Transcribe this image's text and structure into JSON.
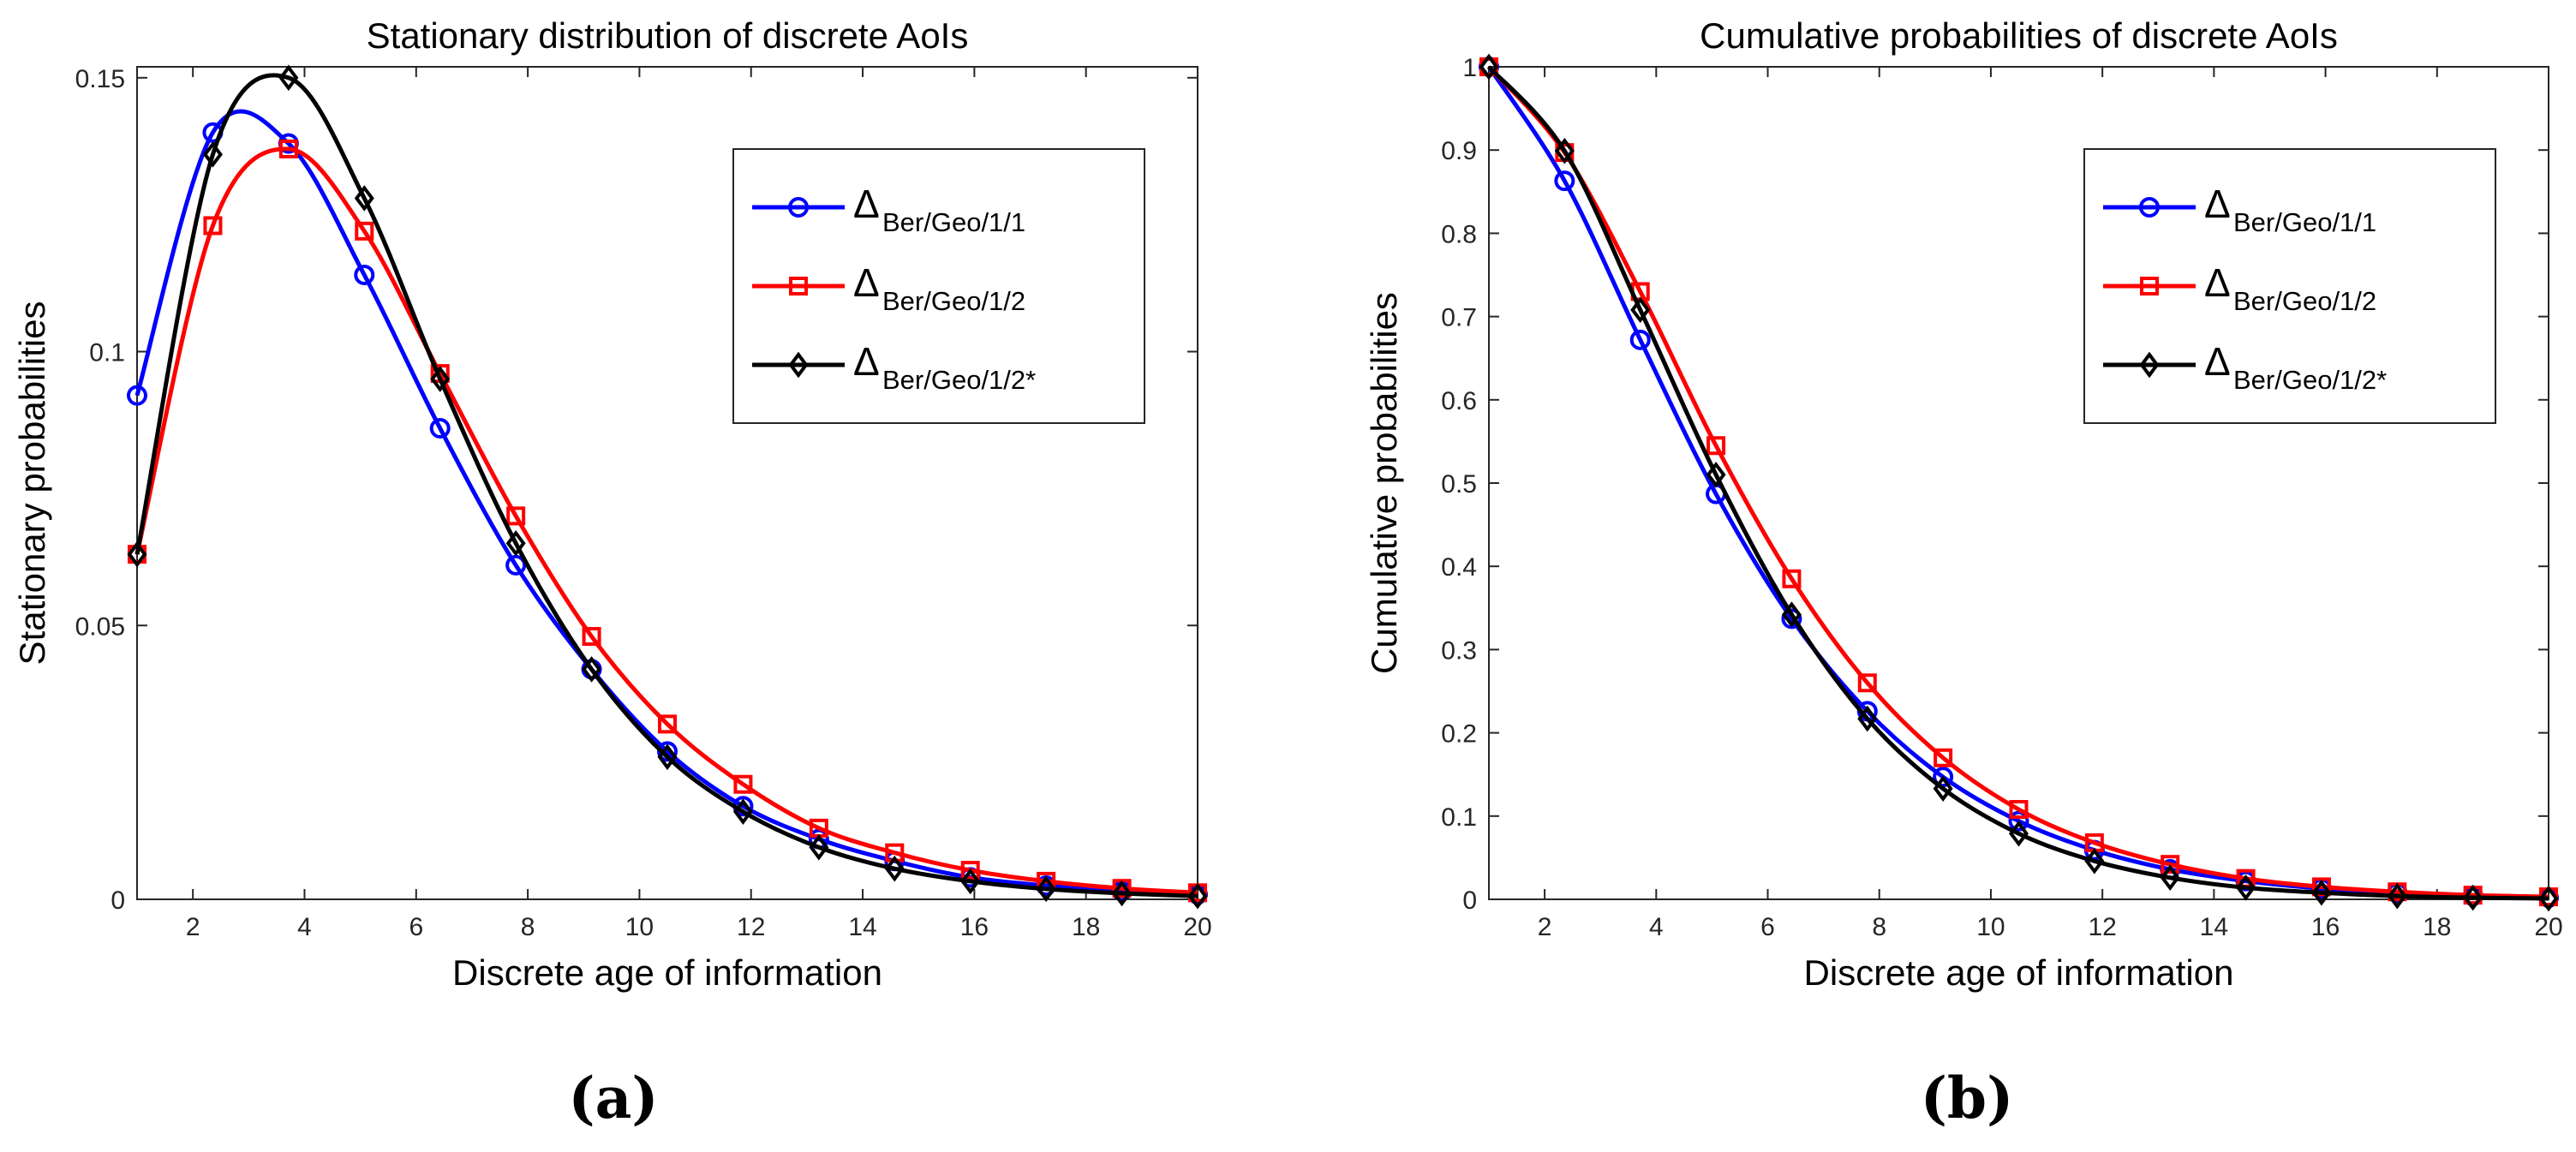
{
  "figure": {
    "panel_labels": [
      "(a)",
      "(b)"
    ]
  },
  "chart_data": [
    {
      "type": "line",
      "panel_label": "(a)",
      "title": "Stationary distribution of discrete AoIs",
      "xlabel": "Discrete age of information",
      "ylabel": "Stationary probabilities",
      "xlim": [
        1,
        20
      ],
      "ylim": [
        0,
        0.152
      ],
      "xticks": [
        2,
        4,
        6,
        8,
        10,
        12,
        14,
        16,
        18,
        20
      ],
      "xtick_labels": [
        "2",
        "4",
        "6",
        "8",
        "10",
        "12",
        "14",
        "16",
        "18",
        "20"
      ],
      "yticks": [
        0,
        0.05,
        0.1,
        0.15
      ],
      "ytick_labels": [
        "0",
        "0.05",
        "0.1",
        "0.15"
      ],
      "grid": false,
      "legend_position": "top-right",
      "x": [
        1,
        2.3571,
        3.7143,
        5.0714,
        6.4286,
        7.7857,
        9.1429,
        10.5,
        11.8571,
        13.2143,
        14.5714,
        15.9286,
        17.2857,
        18.6429,
        20
      ],
      "series": [
        {
          "name": "Δ Ber/Geo/1/1",
          "legend_symbol": "Δ",
          "legend_subscript": "Ber/Geo/1/1",
          "color": "#0000ff",
          "marker": "circle",
          "values": [
            0.092,
            0.14,
            0.138,
            0.114,
            0.086,
            0.061,
            0.042,
            0.027,
            0.017,
            0.011,
            0.007,
            0.004,
            0.0025,
            0.0015,
            0.0009
          ]
        },
        {
          "name": "Δ Ber/Geo/1/2",
          "legend_symbol": "Δ",
          "legend_subscript": "Ber/Geo/1/2",
          "color": "#ff0000",
          "marker": "square",
          "values": [
            0.063,
            0.123,
            0.137,
            0.122,
            0.096,
            0.07,
            0.048,
            0.032,
            0.021,
            0.013,
            0.0085,
            0.0053,
            0.0033,
            0.002,
            0.0012
          ]
        },
        {
          "name": "Δ Ber/Geo/1/2*",
          "legend_symbol": "Δ",
          "legend_subscript": "Ber/Geo/1/2*",
          "color": "#000000",
          "marker": "diamond",
          "values": [
            0.063,
            0.136,
            0.15,
            0.128,
            0.095,
            0.065,
            0.042,
            0.026,
            0.016,
            0.0095,
            0.0056,
            0.0033,
            0.0019,
            0.0011,
            0.0006
          ]
        }
      ]
    },
    {
      "type": "line",
      "panel_label": "(b)",
      "title": "Cumulative probabilities of discrete AoIs",
      "xlabel": "Discrete age of information",
      "ylabel": "Cumulative probabilities",
      "xlim": [
        1,
        20
      ],
      "ylim": [
        0,
        1
      ],
      "xticks": [
        2,
        4,
        6,
        8,
        10,
        12,
        14,
        16,
        18,
        20
      ],
      "xtick_labels": [
        "2",
        "4",
        "6",
        "8",
        "10",
        "12",
        "14",
        "16",
        "18",
        "20"
      ],
      "yticks": [
        0,
        0.1,
        0.2,
        0.3,
        0.4,
        0.5,
        0.6,
        0.7,
        0.8,
        0.9,
        1
      ],
      "ytick_labels": [
        "0",
        "0.1",
        "0.2",
        "0.3",
        "0.4",
        "0.5",
        "0.6",
        "0.7",
        "0.8",
        "0.9",
        "1"
      ],
      "grid": false,
      "legend_position": "top-right",
      "x": [
        1,
        2.3571,
        3.7143,
        5.0714,
        6.4286,
        7.7857,
        9.1429,
        10.5,
        11.8571,
        13.2143,
        14.5714,
        15.9286,
        17.2857,
        18.6429,
        20
      ],
      "series": [
        {
          "name": "Δ Ber/Geo/1/1",
          "legend_symbol": "Δ",
          "legend_subscript": "Ber/Geo/1/1",
          "color": "#0000ff",
          "marker": "circle",
          "values": [
            1,
            0.863,
            0.672,
            0.487,
            0.337,
            0.226,
            0.147,
            0.094,
            0.059,
            0.036,
            0.022,
            0.013,
            0.008,
            0.004,
            0.002
          ]
        },
        {
          "name": "Δ Ber/Geo/1/2",
          "legend_symbol": "Δ",
          "legend_subscript": "Ber/Geo/1/2",
          "color": "#ff0000",
          "marker": "square",
          "values": [
            1,
            0.897,
            0.73,
            0.545,
            0.385,
            0.26,
            0.17,
            0.108,
            0.068,
            0.042,
            0.025,
            0.015,
            0.009,
            0.005,
            0.003
          ]
        },
        {
          "name": "Δ Ber/Geo/1/2*",
          "legend_symbol": "Δ",
          "legend_subscript": "Ber/Geo/1/2*",
          "color": "#000000",
          "marker": "diamond",
          "values": [
            1,
            0.899,
            0.708,
            0.51,
            0.342,
            0.217,
            0.133,
            0.079,
            0.046,
            0.026,
            0.014,
            0.008,
            0.004,
            0.002,
            0.001
          ]
        }
      ]
    }
  ]
}
